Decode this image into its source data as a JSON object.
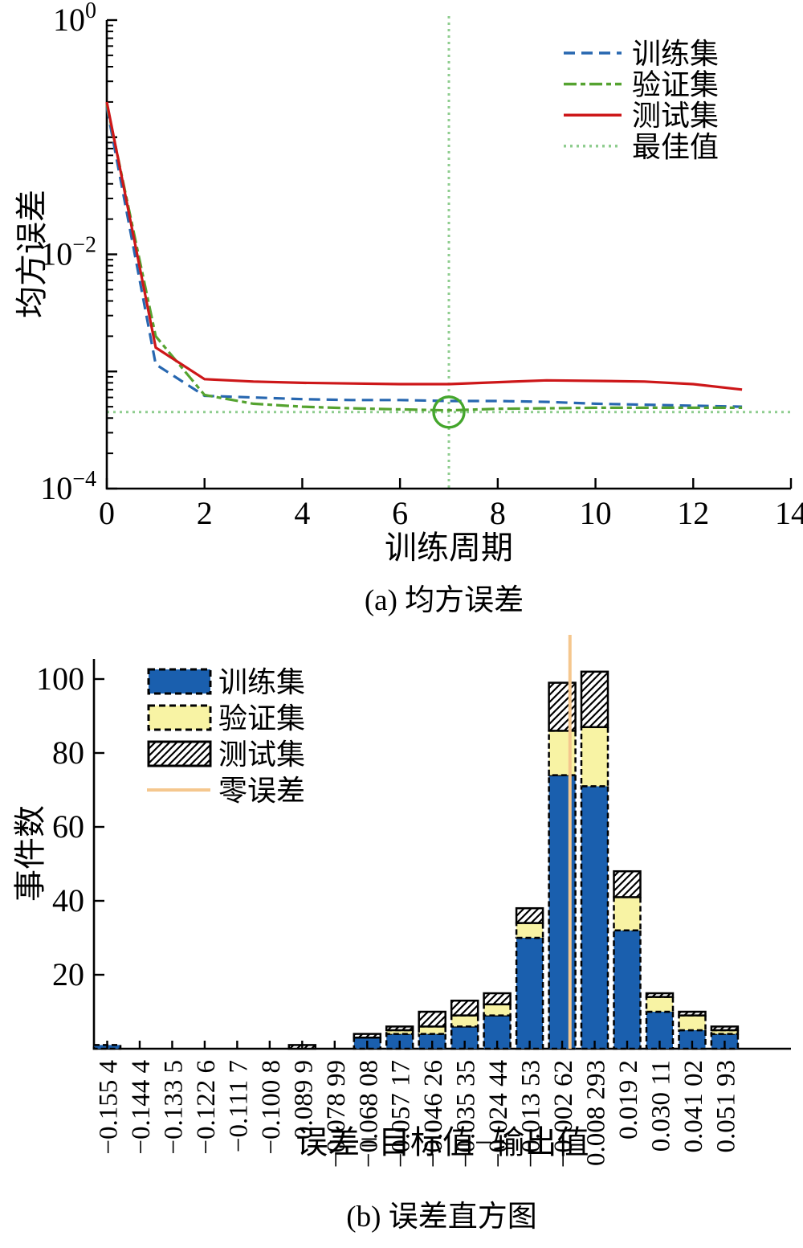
{
  "figure": {
    "background": "#ffffff"
  },
  "panel_a": {
    "ylabel": "均方误差",
    "xlabel": "训练周期",
    "caption": "(a) 均方误差"
  },
  "panel_b": {
    "ylabel": "事件数",
    "xlabel": "误差=目标值−输出值",
    "caption": "(b) 误差直方图"
  },
  "chart_data": [
    {
      "type": "line",
      "title": "",
      "xlabel": "训练周期",
      "ylabel": "均方误差",
      "caption": "(a) 均方误差",
      "y_scale": "log10",
      "ylim": [
        0.0001,
        1
      ],
      "xlim": [
        0,
        14
      ],
      "x_ticks": [
        0,
        2,
        4,
        6,
        8,
        10,
        12,
        14
      ],
      "y_labeled_exponents": [
        0,
        -2,
        -4
      ],
      "legend_position": "top-right",
      "epochs": [
        0,
        1,
        2,
        3,
        4,
        5,
        6,
        7,
        8,
        9,
        10,
        11,
        12,
        13
      ],
      "series": [
        {
          "name": "训练集",
          "color": "#2767b0",
          "line_style": "dashed",
          "values": [
            0.18,
            0.00115,
            0.00062,
            0.0006,
            0.00058,
            0.00057,
            0.00057,
            0.00056,
            0.00056,
            0.00055,
            0.00053,
            0.00052,
            0.00051,
            0.0005
          ]
        },
        {
          "name": "验证集",
          "color": "#55a330",
          "line_style": "dashdot",
          "values": [
            0.19,
            0.002,
            0.00063,
            0.00053,
            0.0005,
            0.000485,
            0.000475,
            0.000465,
            0.00048,
            0.000485,
            0.00049,
            0.00049,
            0.00049,
            0.00049
          ]
        },
        {
          "name": "测试集",
          "color": "#cd1719",
          "line_style": "solid",
          "values": [
            0.2,
            0.0016,
            0.00086,
            0.00082,
            0.0008,
            0.00079,
            0.00078,
            0.00078,
            0.00081,
            0.00084,
            0.00083,
            0.00082,
            0.00078,
            0.0007
          ]
        }
      ],
      "best": {
        "name": "最佳值",
        "color": "#8fcd8f",
        "line_style": "dotted",
        "epoch": 7,
        "value": 0.00045,
        "marker": "green-circle"
      }
    },
    {
      "type": "bar",
      "stacked": true,
      "xlabel": "误差=目标值−输出值",
      "ylabel": "事件数",
      "caption": "(b) 误差直方图",
      "ylim": [
        0,
        110
      ],
      "y_ticks": [
        20,
        40,
        60,
        80,
        100
      ],
      "legend_position": "top-left",
      "categories": [
        "−0.155 4",
        "−0.144 4",
        "−0.133 5",
        "−0.122 6",
        "−0.111 7",
        "−0.100 8",
        "−0.089 9",
        "−0.078 99",
        "−0.068 08",
        "−0.057 17",
        "−0.046 26",
        "−0.035 35",
        "−0.024 44",
        "−0.013 53",
        "−0.002 62",
        "0.008 293",
        "0.019 2",
        "0.030 11",
        "0.041 02",
        "0.051 93"
      ],
      "series": [
        {
          "name": "训练集",
          "color": "#1a5fae",
          "fill": "solid",
          "border": "dashed",
          "values": [
            1,
            0,
            0,
            0,
            0,
            0,
            0,
            0,
            3,
            4,
            4,
            6,
            9,
            30,
            74,
            71,
            32,
            10,
            5,
            4
          ]
        },
        {
          "name": "验证集",
          "color": "#f8f3a4",
          "fill": "solid",
          "border": "dashed",
          "values": [
            0,
            0,
            0,
            0,
            0,
            0,
            0,
            0,
            0,
            1,
            2,
            3,
            3,
            4,
            12,
            16,
            9,
            4,
            4,
            1
          ]
        },
        {
          "name": "测试集",
          "color": "#ffffff",
          "fill": "hatch",
          "border": "solid",
          "values": [
            0,
            0,
            0,
            0,
            0,
            0,
            1,
            0,
            1,
            1,
            4,
            4,
            3,
            4,
            13,
            15,
            7,
            1,
            1,
            1
          ]
        }
      ],
      "zero_line": {
        "name": "零误差",
        "color": "#f5c78e",
        "value": 0,
        "first_bin_center": -0.1554,
        "bin_width": 0.010913
      }
    }
  ]
}
